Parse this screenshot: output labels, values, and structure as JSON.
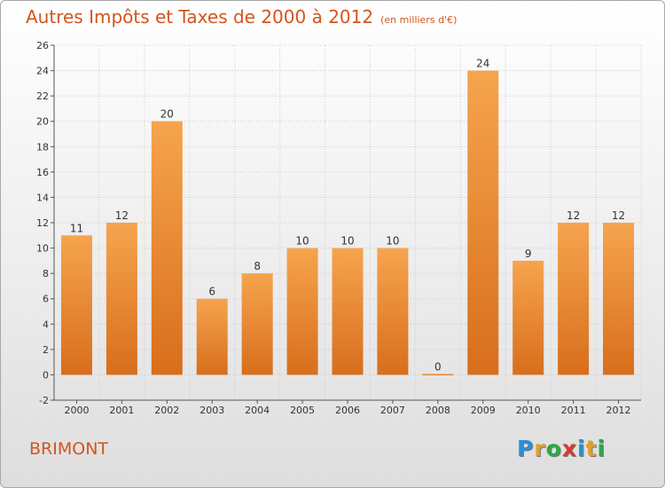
{
  "header": {
    "title": "Autres Impôts et Taxes de 2000 à 2012",
    "subtitle": "(en milliers d'€)"
  },
  "footer": {
    "town": "BRIMONT",
    "logo_letters": [
      "P",
      "r",
      "o",
      "x",
      "i",
      "t",
      "i"
    ],
    "logo_colors": [
      "#2c8fd1",
      "#e0a02a",
      "#2ea84a",
      "#d63b2b",
      "#2c8fd1",
      "#e0a02a",
      "#2ea84a"
    ]
  },
  "chart_data": {
    "type": "bar",
    "categories": [
      "2000",
      "2001",
      "2002",
      "2003",
      "2004",
      "2005",
      "2006",
      "2007",
      "2008",
      "2009",
      "2010",
      "2011",
      "2012"
    ],
    "values": [
      11,
      12,
      20,
      6,
      8,
      10,
      10,
      10,
      0,
      24,
      9,
      12,
      12
    ],
    "data_labels": [
      "11",
      "12",
      "20",
      "6",
      "8",
      "10",
      "10",
      "10",
      "0",
      "24",
      "9",
      "12",
      "12"
    ],
    "ylim": [
      -2,
      26
    ],
    "yticks": [
      -2,
      0,
      2,
      4,
      6,
      8,
      10,
      12,
      14,
      16,
      18,
      20,
      22,
      24,
      26
    ],
    "grid": true,
    "bar_color_top": "#f6a44e",
    "bar_color_bottom": "#d86e1c",
    "axis_color": "#555555",
    "grid_color": "#cccccc"
  }
}
